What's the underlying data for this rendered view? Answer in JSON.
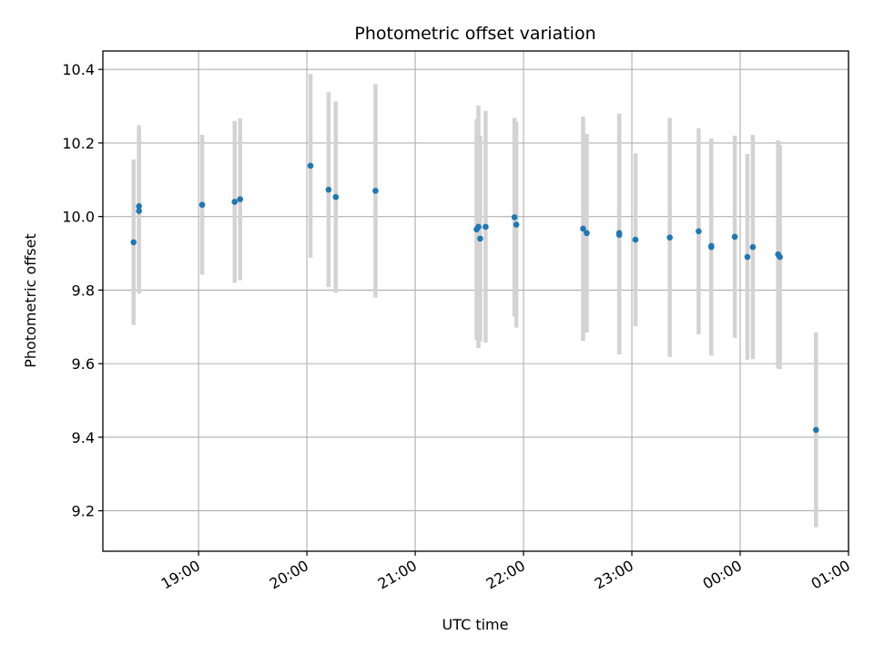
{
  "chart_data": {
    "type": "scatter",
    "title": "Photometric offset variation",
    "xlabel": "UTC time",
    "ylabel": "Photometric offset",
    "x_tick_labels": [
      "19:00",
      "20:00",
      "21:00",
      "22:00",
      "23:00",
      "00:00",
      "01:00"
    ],
    "y_tick_labels": [
      "9.2",
      "9.4",
      "9.6",
      "9.8",
      "10.0",
      "10.2",
      "10.4"
    ],
    "x_ticks": [
      "2000-01-01T19:00",
      "2000-01-01T20:00",
      "2000-01-01T21:00",
      "2000-01-01T22:00",
      "2000-01-01T23:00",
      "2000-01-02T00:00",
      "2000-01-02T01:00"
    ],
    "xlim": [
      "2000-01-01T18:07",
      "2000-01-02T01:00"
    ],
    "ylim": [
      9.09,
      10.45
    ],
    "y_ticks": [
      9.2,
      9.4,
      9.6,
      9.8,
      10.0,
      10.2,
      10.4
    ],
    "grid": true,
    "colors": {
      "marker": "#1f77b4",
      "errorbar": "#d3d3d3",
      "grid": "#b0b0b0"
    },
    "points": [
      {
        "x": "2000-01-01T18:24",
        "y": 9.93,
        "yerr": 0.225
      },
      {
        "x": "2000-01-01T18:27",
        "y": 10.028,
        "yerr": 0.22
      },
      {
        "x": "2000-01-01T18:27",
        "y": 10.015,
        "yerr": 0.225
      },
      {
        "x": "2000-01-01T19:02",
        "y": 10.032,
        "yerr": 0.19
      },
      {
        "x": "2000-01-01T19:20",
        "y": 10.04,
        "yerr": 0.22
      },
      {
        "x": "2000-01-01T19:23",
        "y": 10.047,
        "yerr": 0.22
      },
      {
        "x": "2000-01-01T20:02",
        "y": 10.138,
        "yerr": 0.25
      },
      {
        "x": "2000-01-01T20:12",
        "y": 10.073,
        "yerr": 0.265
      },
      {
        "x": "2000-01-01T20:16",
        "y": 10.053,
        "yerr": 0.26
      },
      {
        "x": "2000-01-01T20:38",
        "y": 10.07,
        "yerr": 0.29
      },
      {
        "x": "2000-01-01T21:34",
        "y": 9.965,
        "yerr": 0.3
      },
      {
        "x": "2000-01-01T21:35",
        "y": 9.972,
        "yerr": 0.33
      },
      {
        "x": "2000-01-01T21:36",
        "y": 9.94,
        "yerr": 0.28
      },
      {
        "x": "2000-01-01T21:39",
        "y": 9.972,
        "yerr": 0.315
      },
      {
        "x": "2000-01-01T21:55",
        "y": 9.998,
        "yerr": 0.27
      },
      {
        "x": "2000-01-01T21:56",
        "y": 9.978,
        "yerr": 0.28
      },
      {
        "x": "2000-01-01T22:33",
        "y": 9.967,
        "yerr": 0.305
      },
      {
        "x": "2000-01-01T22:35",
        "y": 9.955,
        "yerr": 0.27
      },
      {
        "x": "2000-01-01T22:53",
        "y": 9.955,
        "yerr": 0.325
      },
      {
        "x": "2000-01-01T22:53",
        "y": 9.95,
        "yerr": 0.325
      },
      {
        "x": "2000-01-01T23:02",
        "y": 9.937,
        "yerr": 0.235
      },
      {
        "x": "2000-01-01T23:21",
        "y": 9.943,
        "yerr": 0.325
      },
      {
        "x": "2000-01-01T23:37",
        "y": 9.96,
        "yerr": 0.28
      },
      {
        "x": "2000-01-01T23:44",
        "y": 9.917,
        "yerr": 0.295
      },
      {
        "x": "2000-01-01T23:44",
        "y": 9.92,
        "yerr": 0.285
      },
      {
        "x": "2000-01-01T23:57",
        "y": 9.945,
        "yerr": 0.275
      },
      {
        "x": "2000-01-02T00:04",
        "y": 9.89,
        "yerr": 0.28
      },
      {
        "x": "2000-01-02T00:07",
        "y": 9.917,
        "yerr": 0.305
      },
      {
        "x": "2000-01-02T00:21",
        "y": 9.897,
        "yerr": 0.31
      },
      {
        "x": "2000-01-02T00:22",
        "y": 9.89,
        "yerr": 0.305
      },
      {
        "x": "2000-01-02T00:42",
        "y": 9.42,
        "yerr": 0.265
      }
    ]
  }
}
